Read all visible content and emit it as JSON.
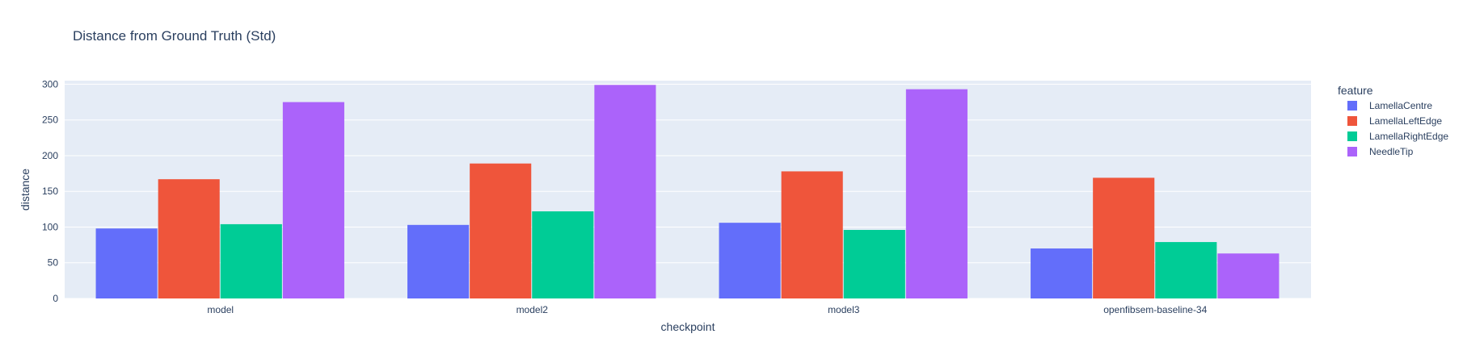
{
  "chart_data": {
    "type": "bar",
    "title": "Distance from Ground Truth (Std)",
    "xlabel": "checkpoint",
    "ylabel": "distance",
    "categories": [
      "model",
      "model2",
      "model3",
      "openfibsem-baseline-34"
    ],
    "ylim": [
      0,
      305
    ],
    "yticks": [
      0,
      50,
      100,
      150,
      200,
      250,
      300
    ],
    "grid": true,
    "legend": {
      "title": "feature",
      "position": "right"
    },
    "series": [
      {
        "name": "LamellaCentre",
        "color": "#636efa",
        "values": [
          98,
          103,
          106,
          70
        ]
      },
      {
        "name": "LamellaLeftEdge",
        "color": "#ef553b",
        "values": [
          167,
          189,
          178,
          169
        ]
      },
      {
        "name": "LamellaRightEdge",
        "color": "#00cc96",
        "values": [
          104,
          122,
          96,
          79
        ]
      },
      {
        "name": "NeedleTip",
        "color": "#ab63fa",
        "values": [
          275,
          299,
          293,
          63
        ]
      }
    ],
    "plot_bg": "#e5ecf6"
  }
}
